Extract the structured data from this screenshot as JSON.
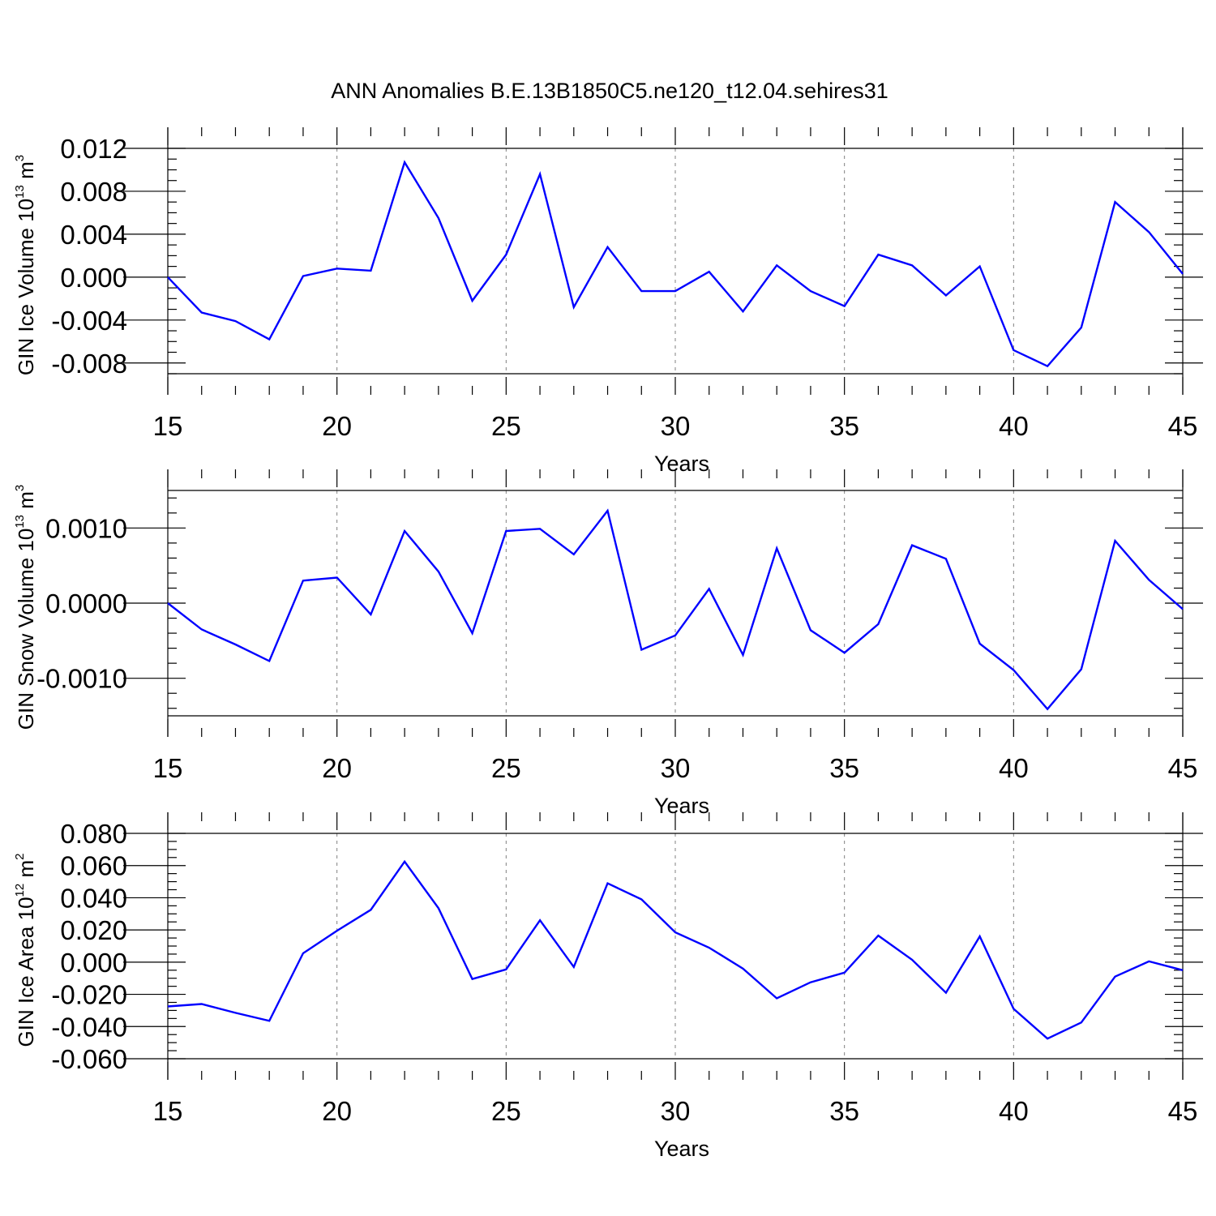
{
  "title": "ANN Anomalies B.E.13B1850C5.ne120_t12.04.sehires31",
  "colors": {
    "line": "#0000ff",
    "grid": "#808080",
    "axis": "#000000"
  },
  "chart_data": [
    {
      "type": "line",
      "xlabel": "Years",
      "ylabel": {
        "text": "GIN Ice Volume 10",
        "exp": "13",
        "unit": " m",
        "unit_exp": "3"
      },
      "xlim": [
        15,
        45
      ],
      "ylim": [
        -0.009,
        0.012
      ],
      "x_ticks": [
        15,
        20,
        25,
        30,
        35,
        40,
        45
      ],
      "y_ticks": [
        -0.008,
        -0.004,
        0.0,
        0.004,
        0.008,
        0.012
      ],
      "y_tick_labels": [
        "-0.008",
        "-0.004",
        "0.000",
        "0.004",
        "0.008",
        "0.012"
      ],
      "y_minor_step": 0.001,
      "grid": "dashed vertical at major x ticks",
      "x": [
        15,
        16,
        17,
        18,
        19,
        20,
        21,
        22,
        23,
        24,
        25,
        26,
        27,
        28,
        29,
        30,
        31,
        32,
        33,
        34,
        35,
        36,
        37,
        38,
        39,
        40,
        41,
        42,
        43,
        44,
        45
      ],
      "values": [
        0.0,
        -0.0033,
        -0.0041,
        -0.0058,
        0.0001,
        0.0008,
        0.0006,
        0.0107,
        0.0055,
        -0.0022,
        0.0021,
        0.0096,
        -0.0028,
        0.0028,
        -0.0013,
        -0.0013,
        0.0005,
        -0.0032,
        0.0011,
        -0.0013,
        -0.0027,
        0.0021,
        0.0011,
        -0.0017,
        0.001,
        -0.0068,
        -0.0083,
        -0.0047,
        0.007,
        0.0042,
        0.0003
      ]
    },
    {
      "type": "line",
      "xlabel": "Years",
      "ylabel": {
        "text": "GIN Snow Volume 10",
        "exp": "13",
        "unit": " m",
        "unit_exp": "3"
      },
      "xlim": [
        15,
        45
      ],
      "ylim": [
        -0.0015,
        0.0015
      ],
      "x_ticks": [
        15,
        20,
        25,
        30,
        35,
        40,
        45
      ],
      "y_ticks": [
        -0.001,
        0.0,
        0.001
      ],
      "y_tick_labels": [
        "-0.0010",
        "0.0000",
        "0.0010"
      ],
      "y_minor_step": 0.0002,
      "grid": "dashed vertical at major x ticks",
      "x": [
        15,
        16,
        17,
        18,
        19,
        20,
        21,
        22,
        23,
        24,
        25,
        26,
        27,
        28,
        29,
        30,
        31,
        32,
        33,
        34,
        35,
        36,
        37,
        38,
        39,
        40,
        41,
        42,
        43,
        44,
        45
      ],
      "values": [
        0.0,
        -0.00035,
        -0.00055,
        -0.00077,
        0.0003,
        0.00034,
        -0.00015,
        0.00096,
        0.00042,
        -0.0004,
        0.00096,
        0.00099,
        0.00065,
        0.00123,
        -0.00062,
        -0.00043,
        0.00019,
        -0.00069,
        0.00073,
        -0.00036,
        -0.00066,
        -0.00028,
        0.00077,
        0.00059,
        -0.00054,
        -0.00089,
        -0.00141,
        -0.00088,
        0.00083,
        0.00031,
        -8e-05
      ]
    },
    {
      "type": "line",
      "xlabel": "Years",
      "ylabel": {
        "text": "GIN Ice Area 10",
        "exp": "12",
        "unit": " m",
        "unit_exp": "2"
      },
      "xlim": [
        15,
        45
      ],
      "ylim": [
        -0.06,
        0.08
      ],
      "x_ticks": [
        15,
        20,
        25,
        30,
        35,
        40,
        45
      ],
      "y_ticks": [
        -0.06,
        -0.04,
        -0.02,
        0.0,
        0.02,
        0.04,
        0.06,
        0.08
      ],
      "y_tick_labels": [
        "-0.060",
        "-0.040",
        "-0.020",
        "0.000",
        "0.020",
        "0.040",
        "0.060",
        "0.080"
      ],
      "y_minor_step": 0.005,
      "grid": "dashed vertical at major x ticks",
      "x": [
        15,
        16,
        17,
        18,
        19,
        20,
        21,
        22,
        23,
        24,
        25,
        26,
        27,
        28,
        29,
        30,
        31,
        32,
        33,
        34,
        35,
        36,
        37,
        38,
        39,
        40,
        41,
        42,
        43,
        44,
        45
      ],
      "values": [
        -0.0275,
        -0.026,
        -0.0315,
        -0.0365,
        0.0055,
        0.0195,
        0.0325,
        0.0625,
        0.0335,
        -0.0105,
        -0.0045,
        0.026,
        -0.003,
        0.049,
        0.039,
        0.0185,
        0.009,
        -0.004,
        -0.0225,
        -0.0125,
        -0.0065,
        0.0165,
        0.0015,
        -0.019,
        0.016,
        -0.029,
        -0.0475,
        -0.0375,
        -0.009,
        0.0005,
        -0.005
      ]
    }
  ]
}
